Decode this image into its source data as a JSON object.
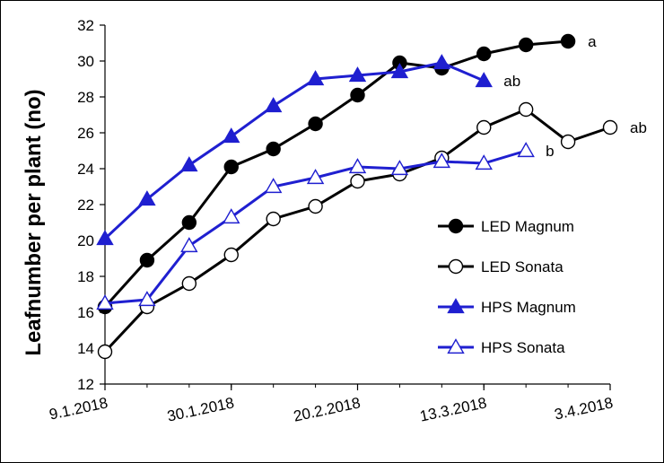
{
  "chart_data": {
    "type": "line",
    "ylabel": "Leafnumber per plant (no)",
    "xlabel": "",
    "ylim": [
      12,
      32
    ],
    "yticks": [
      12,
      14,
      16,
      18,
      20,
      22,
      24,
      26,
      28,
      30,
      32
    ],
    "x_axis": {
      "type": "date",
      "range": [
        "2018-01-09",
        "2018-04-03"
      ]
    },
    "xticks": [
      {
        "date": "2018-01-09",
        "label": "9.1.2018"
      },
      {
        "date": "2018-01-30",
        "label": "30.1.2018"
      },
      {
        "date": "2018-02-20",
        "label": "20.2.2018"
      },
      {
        "date": "2018-03-13",
        "label": "13.3.2018"
      },
      {
        "date": "2018-04-03",
        "label": "3.4.2018"
      }
    ],
    "grid": false,
    "legend_placement": "right",
    "series": [
      {
        "name": "LED Magnum",
        "color": "#000000",
        "marker": "circle-filled",
        "x": [
          "2018-01-09",
          "2018-01-16",
          "2018-01-23",
          "2018-01-30",
          "2018-02-06",
          "2018-02-13",
          "2018-02-20",
          "2018-02-27",
          "2018-03-06",
          "2018-03-13",
          "2018-03-20",
          "2018-03-27"
        ],
        "y": [
          16.3,
          18.9,
          21.0,
          24.1,
          25.1,
          26.5,
          28.1,
          29.9,
          29.6,
          30.4,
          30.9,
          31.1
        ],
        "annotation": "a"
      },
      {
        "name": "LED Sonata",
        "color": "#000000",
        "marker": "circle-open",
        "x": [
          "2018-01-09",
          "2018-01-16",
          "2018-01-23",
          "2018-01-30",
          "2018-02-06",
          "2018-02-13",
          "2018-02-20",
          "2018-02-27",
          "2018-03-06",
          "2018-03-13",
          "2018-03-20",
          "2018-03-27",
          "2018-04-03"
        ],
        "y": [
          13.8,
          16.3,
          17.6,
          19.2,
          21.2,
          21.9,
          23.3,
          23.7,
          24.6,
          26.3,
          27.3,
          25.5,
          26.3
        ],
        "annotation": "ab"
      },
      {
        "name": "HPS Magnum",
        "color": "#1f1fd0",
        "marker": "triangle-filled",
        "x": [
          "2018-01-09",
          "2018-01-16",
          "2018-01-23",
          "2018-01-30",
          "2018-02-06",
          "2018-02-13",
          "2018-02-20",
          "2018-02-27",
          "2018-03-06",
          "2018-03-13"
        ],
        "y": [
          20.1,
          22.3,
          24.2,
          25.8,
          27.5,
          29.0,
          29.2,
          29.4,
          29.9,
          28.9
        ],
        "annotation": "ab"
      },
      {
        "name": "HPS Sonata",
        "color": "#1f1fd0",
        "marker": "triangle-open",
        "x": [
          "2018-01-09",
          "2018-01-16",
          "2018-01-23",
          "2018-01-30",
          "2018-02-06",
          "2018-02-13",
          "2018-02-20",
          "2018-02-27",
          "2018-03-06",
          "2018-03-13",
          "2018-03-20"
        ],
        "y": [
          16.5,
          16.7,
          19.7,
          21.3,
          23.0,
          23.5,
          24.1,
          24.0,
          24.4,
          24.3,
          25.0
        ],
        "annotation": "b"
      }
    ]
  }
}
